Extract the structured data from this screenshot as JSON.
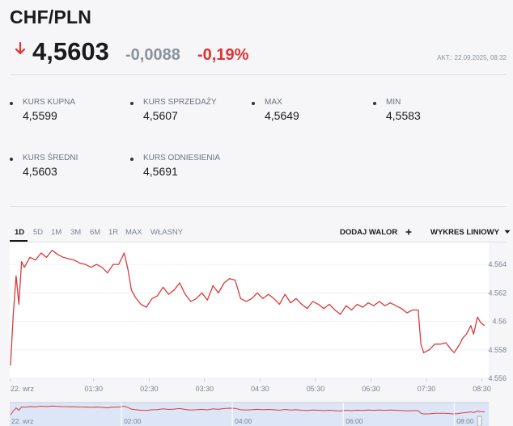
{
  "header": {
    "title": "CHF/PLN",
    "price": "4,5603",
    "change": "-0,0088",
    "change_pct": "-0,19%",
    "updated": "AKT.: 22.09.2025, 08:32",
    "down_color": "#e03232"
  },
  "stats": [
    {
      "label": "KURS KUPNA",
      "value": "4,5599"
    },
    {
      "label": "KURS SPRZEDAŻY",
      "value": "4,5607"
    },
    {
      "label": "MAX",
      "value": "4,5649"
    },
    {
      "label": "MIN",
      "value": "4,5583"
    },
    {
      "label": "KURS ŚREDNI",
      "value": "4,5603"
    },
    {
      "label": "KURS ODNIESIENIA",
      "value": "4,5691"
    }
  ],
  "tabs": [
    "1D",
    "5D",
    "1M",
    "3M",
    "6M",
    "1R",
    "MAX",
    "WŁASNY"
  ],
  "active_tab": "1D",
  "toolbar": {
    "add_label": "DODAJ WALOR",
    "add_icon": "plus-icon",
    "chart_type_label": "WYKRES LINIOWY",
    "chart_type_icon": "caret-down-icon"
  },
  "chart_data": {
    "type": "line",
    "line_color": "#d93a3a",
    "x_ticks": [
      "22. wrz",
      "01:30",
      "02:30",
      "03:30",
      "04:30",
      "05:30",
      "06:30",
      "07:30",
      "08:30"
    ],
    "y_ticks": [
      "4.564",
      "4.562",
      "4.56",
      "4.558",
      "4.556"
    ],
    "ylim": [
      4.556,
      4.5652
    ],
    "x_hours": [
      0,
      8.55
    ],
    "series": [
      {
        "points": [
          [
            0.0,
            4.5569
          ],
          [
            0.05,
            4.5605
          ],
          [
            0.1,
            4.5632
          ],
          [
            0.15,
            4.5612
          ],
          [
            0.2,
            4.5642
          ],
          [
            0.25,
            4.5638
          ],
          [
            0.35,
            4.5645
          ],
          [
            0.45,
            4.5643
          ],
          [
            0.55,
            4.5648
          ],
          [
            0.65,
            4.5645
          ],
          [
            0.75,
            4.565
          ],
          [
            0.85,
            4.5647
          ],
          [
            0.95,
            4.5645
          ],
          [
            1.05,
            4.5644
          ],
          [
            1.15,
            4.5643
          ],
          [
            1.25,
            4.5641
          ],
          [
            1.35,
            4.564
          ],
          [
            1.45,
            4.5638
          ],
          [
            1.55,
            4.564
          ],
          [
            1.65,
            4.5638
          ],
          [
            1.75,
            4.5634
          ],
          [
            1.85,
            4.564
          ],
          [
            1.95,
            4.564
          ],
          [
            2.05,
            4.5648
          ],
          [
            2.12,
            4.5636
          ],
          [
            2.18,
            4.5622
          ],
          [
            2.25,
            4.5617
          ],
          [
            2.35,
            4.5612
          ],
          [
            2.45,
            4.561
          ],
          [
            2.55,
            4.5616
          ],
          [
            2.65,
            4.5618
          ],
          [
            2.75,
            4.5624
          ],
          [
            2.85,
            4.5619
          ],
          [
            2.95,
            4.5622
          ],
          [
            3.05,
            4.5627
          ],
          [
            3.15,
            4.5619
          ],
          [
            3.25,
            4.5614
          ],
          [
            3.35,
            4.5616
          ],
          [
            3.45,
            4.562
          ],
          [
            3.55,
            4.5615
          ],
          [
            3.65,
            4.5625
          ],
          [
            3.75,
            4.562
          ],
          [
            3.85,
            4.5627
          ],
          [
            3.95,
            4.563
          ],
          [
            4.05,
            4.5629
          ],
          [
            4.15,
            4.5616
          ],
          [
            4.25,
            4.5614
          ],
          [
            4.35,
            4.5616
          ],
          [
            4.45,
            4.562
          ],
          [
            4.55,
            4.5616
          ],
          [
            4.65,
            4.5619
          ],
          [
            4.75,
            4.5616
          ],
          [
            4.85,
            4.5612
          ],
          [
            4.95,
            4.5619
          ],
          [
            5.05,
            4.5613
          ],
          [
            5.15,
            4.5616
          ],
          [
            5.25,
            4.5612
          ],
          [
            5.35,
            4.5609
          ],
          [
            5.45,
            4.5614
          ],
          [
            5.55,
            4.5612
          ],
          [
            5.65,
            4.5609
          ],
          [
            5.75,
            4.5612
          ],
          [
            5.85,
            4.5608
          ],
          [
            5.95,
            4.5605
          ],
          [
            6.05,
            4.5611
          ],
          [
            6.15,
            4.5608
          ],
          [
            6.25,
            4.5612
          ],
          [
            6.35,
            4.561
          ],
          [
            6.45,
            4.5613
          ],
          [
            6.55,
            4.5611
          ],
          [
            6.65,
            4.5614
          ],
          [
            6.75,
            4.5611
          ],
          [
            6.85,
            4.5613
          ],
          [
            6.95,
            4.5611
          ],
          [
            7.05,
            4.5609
          ],
          [
            7.15,
            4.5606
          ],
          [
            7.25,
            4.5608
          ],
          [
            7.35,
            4.5608
          ],
          [
            7.4,
            4.5584
          ],
          [
            7.45,
            4.5578
          ],
          [
            7.55,
            4.558
          ],
          [
            7.65,
            4.5584
          ],
          [
            7.75,
            4.5584
          ],
          [
            7.85,
            4.5585
          ],
          [
            7.95,
            4.558
          ],
          [
            8.0,
            4.5578
          ],
          [
            8.05,
            4.5581
          ],
          [
            8.1,
            4.5584
          ],
          [
            8.15,
            4.5588
          ],
          [
            8.22,
            4.5591
          ],
          [
            8.3,
            4.5597
          ],
          [
            8.35,
            4.5591
          ],
          [
            8.42,
            4.5603
          ],
          [
            8.48,
            4.5599
          ],
          [
            8.55,
            4.5597
          ]
        ]
      }
    ],
    "navigator": {
      "x_ticks": [
        "22. wrz",
        "02:00",
        "04:00",
        "06:00",
        "08:00"
      ]
    }
  }
}
